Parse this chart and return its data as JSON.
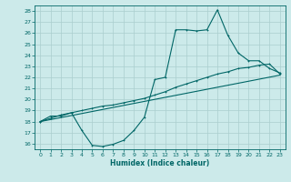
{
  "title": "",
  "xlabel": "Humidex (Indice chaleur)",
  "ylabel": "",
  "bg_color": "#cceaea",
  "grid_color": "#aacece",
  "line_color": "#006666",
  "xlim": [
    -0.5,
    23.5
  ],
  "ylim": [
    15.5,
    28.5
  ],
  "yticks": [
    16,
    17,
    18,
    19,
    20,
    21,
    22,
    23,
    24,
    25,
    26,
    27,
    28
  ],
  "xticks": [
    0,
    1,
    2,
    3,
    4,
    5,
    6,
    7,
    8,
    9,
    10,
    11,
    12,
    13,
    14,
    15,
    16,
    17,
    18,
    19,
    20,
    21,
    22,
    23
  ],
  "curve1_x": [
    0,
    1,
    2,
    3,
    4,
    5,
    6,
    7,
    8,
    9,
    10,
    11,
    12,
    13,
    14,
    15,
    16,
    17,
    18,
    19,
    20,
    21,
    22,
    23
  ],
  "curve1_y": [
    18.0,
    18.5,
    18.5,
    18.8,
    17.2,
    15.85,
    15.75,
    15.95,
    16.3,
    17.2,
    18.4,
    21.8,
    22.0,
    26.3,
    26.3,
    26.2,
    26.3,
    28.1,
    25.8,
    24.2,
    23.5,
    23.5,
    22.8,
    22.4
  ],
  "curve2_x": [
    0,
    1,
    2,
    3,
    4,
    5,
    6,
    7,
    8,
    9,
    10,
    11,
    12,
    13,
    14,
    15,
    16,
    17,
    18,
    19,
    20,
    21,
    22,
    23
  ],
  "curve2_y": [
    18.0,
    18.3,
    18.6,
    18.8,
    19.0,
    19.2,
    19.4,
    19.5,
    19.7,
    19.9,
    20.1,
    20.4,
    20.7,
    21.1,
    21.4,
    21.7,
    22.0,
    22.3,
    22.5,
    22.8,
    22.9,
    23.1,
    23.2,
    22.3
  ],
  "curve3_x": [
    0,
    23
  ],
  "curve3_y": [
    18.0,
    22.2
  ]
}
